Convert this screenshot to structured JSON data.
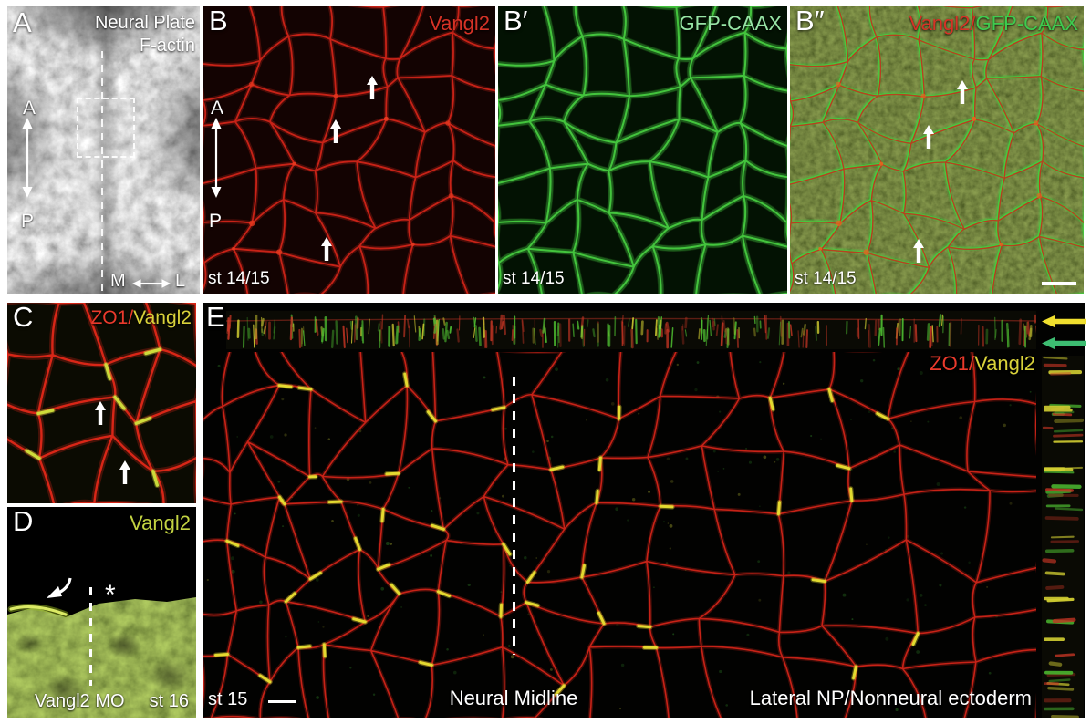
{
  "colors": {
    "page_bg": "#ffffff",
    "label_white": "#ffffff",
    "vangl2_red": "#d63226",
    "zo1_red": "#ea3a2c",
    "gfp_green_pale": "#97e5a5",
    "gfp_green": "#3ecb4e",
    "vangl2_yellow": "#d9d23a",
    "vangl2_yellowgreen": "#c3d342",
    "mesh_red": "#cf2418",
    "mesh_red_bright": "#e02818",
    "mesh_green": "#46c93f",
    "junction_yellow": "#e6e032",
    "junction_lime": "#cfe23c",
    "vertex_red": "#e83a20",
    "vertex_orange": "#e8641e",
    "arrow_yellow": "#f0df2e",
    "arrow_green": "#3dbd72",
    "streak_red": "#c43524",
    "streak_green": "#4fc132",
    "streak_yellow": "#d2ce32",
    "bright_line_green": "#e4f26a"
  },
  "panels": {
    "a": {
      "letter": "A",
      "title_line1": "Neural Plate",
      "title_line2": "F-actin",
      "axis_anterior": "A",
      "axis_posterior": "P",
      "axis_medial": "M",
      "axis_lateral": "L"
    },
    "b": {
      "letter": "B",
      "marker": "Vangl2",
      "axis_anterior": "A",
      "axis_posterior": "P",
      "stage": "st 14/15"
    },
    "b_prime": {
      "letter": "B′",
      "marker": "GFP-CAAX",
      "stage": "st 14/15"
    },
    "b_dprime": {
      "letter": "B″",
      "marker_red": "Vangl2",
      "separator": "/",
      "marker_green": "GFP-CAAX",
      "stage": "st 14/15"
    },
    "c": {
      "letter": "C",
      "marker_red": "ZO1",
      "separator": "/",
      "marker_yellow": "Vangl2"
    },
    "d": {
      "letter": "D",
      "marker": "Vangl2",
      "asterisk": "*",
      "treatment": "Vangl2 MO",
      "stage": "st 16"
    },
    "e": {
      "letter": "E",
      "marker_red": "ZO1",
      "separator": "/",
      "marker_yellow": "Vangl2",
      "stage": "st 15",
      "caption_center": "Neural Midline",
      "caption_right": "Lateral NP/Nonneural ectoderm"
    }
  }
}
